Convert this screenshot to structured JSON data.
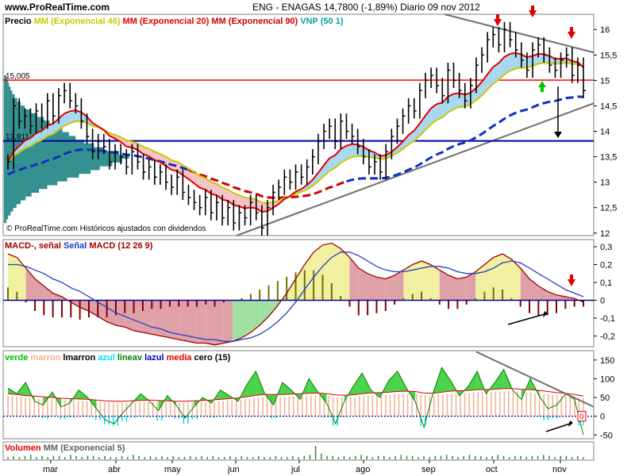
{
  "header": {
    "site": "www.ProRealTime.com",
    "title": "ENG - ENAGAS    14,7800 (-1,89%)    Diario  09 nov 2012"
  },
  "colors": {
    "price_bars": "#000000",
    "ema46": "#c8c800",
    "ema20": "#e00000",
    "ema90": "#c80000",
    "vnp": "#00a0a0",
    "vwap_line": "#1030c0",
    "red_hline": "#ff0000",
    "blue_hline": "#0000a0",
    "trend_line": "#707070",
    "fill_bull": "#a8d8f0",
    "fill_bear": "#f4c4c8",
    "volume_profile": "#2a8a8a",
    "macd_line": "#a00000",
    "signal_line": "#2040c0",
    "macd_fill_pos": "#f0f0a0",
    "macd_fill_neg": "#e0a0a8",
    "macd_fill_green": "#a0e0a0",
    "arrow_red": "#e00000",
    "arrow_green": "#00c000",
    "arrow_black": "#000000",
    "verde": "#00c000",
    "marron": "#f0b090",
    "lmarron": "#c00000",
    "azul": "#00e0f0",
    "lineav": "#008000",
    "lazul": "#0000c0",
    "media": "#e00000",
    "cero": "#000000",
    "volume_bars": "#2a8a3a"
  },
  "chart_data": [
    {
      "type": "line",
      "title": "ENG - ENAGAS    14,7800 (-1,89%)    Diario  09 nov 2012",
      "legend": [
        {
          "label": "Precio",
          "color": "#000000"
        },
        {
          "label": "MM (Exponencial 46)",
          "color": "#c8c800"
        },
        {
          "label": "MM (Exponencial 20)",
          "color": "#e00000"
        },
        {
          "label": "MM (Exponencial 90)",
          "color": "#c80000"
        },
        {
          "label": "VNP (50 1)",
          "color": "#00a0a0"
        }
      ],
      "x_ticks": [
        "mar",
        "abr",
        "may",
        "jun",
        "jul",
        "ago",
        "sep",
        "oct",
        "nov"
      ],
      "y_ticks": [
        "16",
        "15,5",
        "15",
        "14,5",
        "14",
        "13,5",
        "13",
        "12,5",
        "12"
      ],
      "ylim": [
        11.95,
        16.3
      ],
      "hline_labels": [
        {
          "label": "15,005",
          "value": 15.005
        },
        {
          "label": "13,811",
          "value": 13.811
        }
      ],
      "note": "© ProRealTime.com  Históricos ajustados con dividendos",
      "close": [
        13.4,
        14.5,
        14.2,
        14.3,
        14.1,
        14.4,
        14.2,
        14.6,
        14.3,
        14.7,
        14.8,
        14.6,
        14.5,
        14.2,
        13.9,
        13.6,
        13.8,
        13.7,
        13.4,
        13.6,
        13.5,
        13.3,
        13.6,
        13.4,
        13.2,
        13.3,
        13.1,
        13.2,
        13.0,
        12.9,
        13.1,
        12.8,
        12.7,
        12.6,
        12.5,
        12.7,
        12.4,
        12.6,
        12.3,
        12.5,
        12.2,
        12.4,
        12.3,
        12.6,
        12.4,
        12.1,
        12.5,
        12.8,
        12.9,
        13.1,
        13.0,
        13.2,
        13.1,
        13.3,
        13.5,
        13.8,
        14.0,
        14.1,
        13.8,
        14.2,
        14.0,
        13.9,
        13.7,
        13.5,
        13.3,
        13.4,
        13.2,
        13.6,
        13.9,
        14.1,
        14.3,
        14.5,
        14.4,
        14.8,
        15.0,
        15.1,
        14.9,
        14.7,
        15.2,
        15.0,
        14.8,
        14.6,
        14.9,
        15.3,
        15.5,
        15.8,
        15.9,
        15.7,
        16.0,
        15.8,
        15.6,
        15.4,
        15.2,
        15.6,
        15.7,
        15.5,
        15.3,
        15.2,
        15.4,
        15.5,
        15.1,
        15.3,
        14.8
      ]
    },
    {
      "type": "area",
      "title": "MACD-, señal Señal MACD (12 26 9)",
      "legend": [
        {
          "label": "MACD-,",
          "color": "#a00000"
        },
        {
          "label": "señal",
          "color": "#a00000"
        },
        {
          "label": "Señal",
          "color": "#2040c0"
        },
        {
          "label": "MACD (12 26 9)",
          "color": "#a00000"
        }
      ],
      "y_ticks": [
        "0,3",
        "0,2",
        "0,1",
        "0",
        "-0,1",
        "-0,2"
      ],
      "ylim": [
        -0.26,
        0.34
      ],
      "macd": [
        0.26,
        0.24,
        0.18,
        0.12,
        0.08,
        0.04,
        0.02,
        -0.01,
        -0.04,
        -0.06,
        -0.09,
        -0.12,
        -0.14,
        -0.15,
        -0.17,
        -0.18,
        -0.19,
        -0.2,
        -0.21,
        -0.22,
        -0.23,
        -0.24,
        -0.24,
        -0.25,
        -0.24,
        -0.23,
        -0.21,
        -0.18,
        -0.14,
        -0.09,
        -0.03,
        0.04,
        0.12,
        0.2,
        0.27,
        0.31,
        0.32,
        0.29,
        0.24,
        0.18,
        0.15,
        0.13,
        0.12,
        0.14,
        0.17,
        0.2,
        0.22,
        0.2,
        0.17,
        0.14,
        0.12,
        0.13,
        0.16,
        0.2,
        0.24,
        0.26,
        0.23,
        0.18,
        0.12,
        0.08,
        0.05,
        0.03,
        0.02,
        0.01,
        -0.01
      ],
      "signal": [
        0.2,
        0.2,
        0.19,
        0.17,
        0.15,
        0.12,
        0.1,
        0.07,
        0.05,
        0.02,
        -0.01,
        -0.04,
        -0.07,
        -0.09,
        -0.11,
        -0.13,
        -0.15,
        -0.16,
        -0.18,
        -0.19,
        -0.2,
        -0.21,
        -0.22,
        -0.22,
        -0.23,
        -0.23,
        -0.22,
        -0.21,
        -0.19,
        -0.16,
        -0.12,
        -0.07,
        -0.01,
        0.06,
        0.13,
        0.19,
        0.24,
        0.27,
        0.27,
        0.25,
        0.22,
        0.19,
        0.17,
        0.16,
        0.16,
        0.17,
        0.18,
        0.19,
        0.19,
        0.18,
        0.16,
        0.15,
        0.15,
        0.16,
        0.18,
        0.21,
        0.22,
        0.21,
        0.18,
        0.15,
        0.12,
        0.09,
        0.06,
        0.04,
        0.02
      ]
    },
    {
      "type": "area",
      "title": "verde marron lmarron azul lineav lazul media cero (15)",
      "legend": [
        {
          "label": "verde",
          "color": "#00c000"
        },
        {
          "label": "marron",
          "color": "#f0b090"
        },
        {
          "label": "lmarron",
          "color": "#000000"
        },
        {
          "label": "azul",
          "color": "#00e0f0"
        },
        {
          "label": "lineav",
          "color": "#008000"
        },
        {
          "label": "lazul",
          "color": "#0000c0"
        },
        {
          "label": "media",
          "color": "#e00000"
        },
        {
          "label": "cero (15)",
          "color": "#000000"
        }
      ],
      "y_ticks": [
        "150",
        "100",
        "50",
        "0",
        "-50"
      ],
      "ylim": [
        -60,
        175
      ],
      "current_value_label": "0",
      "osc": [
        75,
        60,
        90,
        40,
        30,
        65,
        25,
        35,
        70,
        50,
        20,
        -10,
        -20,
        10,
        35,
        60,
        40,
        15,
        55,
        30,
        -5,
        25,
        50,
        35,
        70,
        55,
        40,
        85,
        120,
        60,
        30,
        90,
        70,
        45,
        100,
        65,
        35,
        -20,
        40,
        80,
        115,
        70,
        50,
        95,
        120,
        75,
        40,
        -30,
        60,
        130,
        95,
        55,
        80,
        120,
        60,
        90,
        125,
        70,
        45,
        100,
        55,
        20,
        30,
        60,
        45,
        -50
      ],
      "media": [
        60,
        58,
        55,
        54,
        52,
        50,
        48,
        47,
        46,
        45,
        43,
        41,
        40,
        40,
        41,
        42,
        43,
        42,
        41,
        40,
        40,
        41,
        42,
        43,
        45,
        47,
        49,
        52,
        56,
        58,
        58,
        58,
        59,
        60,
        61,
        62,
        60,
        57,
        56,
        57,
        60,
        62,
        63,
        64,
        66,
        67,
        66,
        62,
        61,
        64,
        67,
        68,
        69,
        71,
        71,
        72,
        74,
        74,
        72,
        71,
        69,
        66,
        63,
        61,
        58,
        54
      ]
    },
    {
      "type": "bar",
      "title": "Volumen MM (Exponencial 5)",
      "legend": [
        {
          "label": "Volumen",
          "color": "#e00000"
        },
        {
          "label": "MM (Exponencial 5)",
          "color": "#606060"
        }
      ],
      "values": [
        2,
        3,
        2,
        3,
        4,
        2,
        3,
        2,
        3,
        3,
        2,
        4,
        3,
        2,
        3,
        3,
        2,
        3,
        2,
        2,
        3,
        2,
        4,
        3,
        2,
        3,
        2,
        3,
        2,
        3,
        2,
        2,
        3,
        2,
        3,
        2,
        3,
        2,
        2,
        3,
        2,
        3,
        2,
        2,
        3,
        2,
        2,
        3,
        2,
        2,
        3,
        2,
        3,
        4,
        12,
        5,
        3,
        3,
        2,
        3,
        2,
        3,
        4,
        3,
        2,
        3,
        3,
        2,
        3,
        4,
        3,
        3,
        2,
        3,
        2,
        3,
        3,
        4,
        3,
        2,
        3,
        4,
        3,
        3,
        2,
        3,
        4,
        3,
        2,
        3,
        3,
        2,
        3,
        3,
        4,
        3,
        2,
        3,
        3,
        2,
        3,
        2
      ]
    }
  ]
}
